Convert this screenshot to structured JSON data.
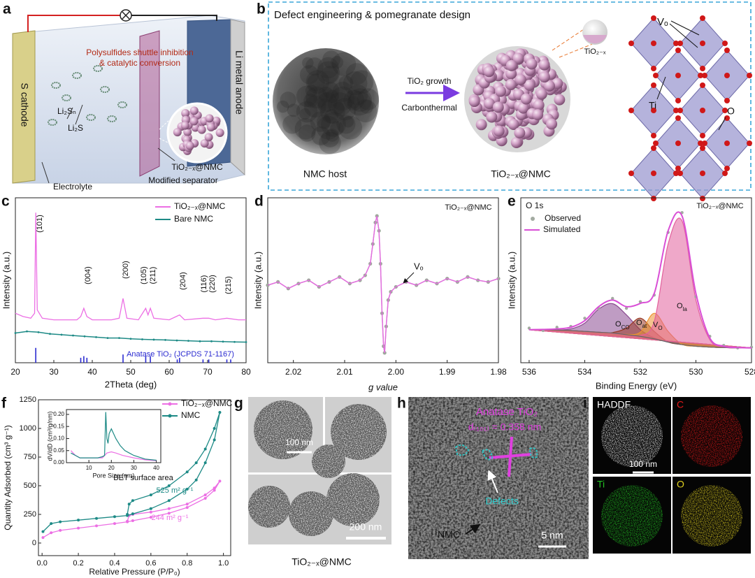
{
  "figure": {
    "a": {
      "label": "a",
      "shuttle": [
        "Polysulfides shuttle inhibition",
        "& catalytic conversion"
      ],
      "cathode": "S cathode",
      "anode": "Li metal anode",
      "li2sn": "Li₂Sₙ",
      "li2s": "Li₂S",
      "material": "TiO₂₋ₓ@NMC",
      "separator": "Modified separator",
      "electrolyte": "Electrolyte"
    },
    "b": {
      "label": "b",
      "title": "Defect engineering & pomegranate design",
      "step1": "TiO₂ growth",
      "step2": "Carbonthermal",
      "host": "NMC host",
      "product": "TiO₂₋ₓ@NMC",
      "particle": "TiO₂₋ₓ",
      "vacancy": "Vₒ",
      "ti": "Ti",
      "o": "O"
    },
    "g": {
      "label": "g",
      "scale1": "100 nm",
      "scale2": "200 nm",
      "caption": "TiO₂₋ₓ@NMC"
    },
    "h": {
      "label": "h",
      "phase": "Anatase TiO₂",
      "spacing": "d₍₁₀₁₎ = 0.358 nm",
      "defects": "Defects",
      "nmc": "NMC",
      "scale": "5 nm"
    },
    "i": {
      "label": "i",
      "panels": [
        "HADDF",
        "C",
        "Ti",
        "O"
      ],
      "scale": "100 nm"
    }
  },
  "chart_data": [
    {
      "type": "line",
      "label": "c",
      "xlabel": "2Theta (deg)",
      "ylabel": "Intensity (a.u.)",
      "xlim": [
        20,
        80
      ],
      "ylim": [
        0,
        100
      ],
      "xticks": [
        20,
        30,
        40,
        50,
        60,
        70,
        80
      ],
      "series": [
        {
          "name": "TiO₂₋ₓ@NMC",
          "color": "#ec6fe4",
          "x": [
            20,
            22,
            24,
            25,
            25.3,
            25.7,
            27,
            30,
            33,
            36,
            37,
            37.8,
            38.6,
            40,
            45,
            47,
            48,
            49,
            52,
            53.9,
            54.5,
            55.1,
            56,
            60,
            62.7,
            64,
            68.8,
            70.3,
            72,
            75,
            78,
            80
          ],
          "values": [
            30,
            28,
            27,
            30,
            91,
            32,
            27,
            26,
            26,
            26,
            28,
            33,
            28,
            26,
            26,
            27,
            39,
            27,
            26,
            33,
            29,
            33,
            27,
            26,
            29,
            26,
            27,
            27,
            26,
            27,
            26,
            26
          ]
        },
        {
          "name": "Bare NMC",
          "color": "#1d8a86",
          "markers": true,
          "x": [
            20,
            23,
            26,
            29,
            32,
            35,
            38,
            41,
            44,
            47,
            50,
            53,
            56,
            59,
            62,
            65,
            68,
            71,
            74,
            77,
            80
          ],
          "values": [
            18,
            19,
            18.5,
            17.5,
            17,
            16.5,
            16,
            15.5,
            15,
            15,
            14.5,
            14.2,
            14,
            13.8,
            13.5,
            13.3,
            13,
            13,
            12.8,
            12.6,
            12.5
          ]
        },
        {
          "name": "Anatase TiO₂ (JCPDS 71-1167)",
          "color": "#2a2ad0",
          "mode": "sticks",
          "x": [
            25.3,
            37,
            37.8,
            38.6,
            48,
            53.9,
            55.1,
            62.1,
            62.7,
            68.8,
            70.3,
            75,
            76
          ],
          "values": [
            9,
            3,
            4,
            3,
            5,
            4,
            4,
            2,
            3,
            2,
            2,
            2,
            2
          ]
        }
      ],
      "peaks": [
        "(101)",
        "(004)",
        "(200)",
        "(105)",
        "(211)",
        "(204)",
        "(116)",
        "(220)",
        "(215)"
      ]
    },
    {
      "type": "line",
      "label": "d",
      "tag": "TiO₂₋ₓ@NMC",
      "annotation": "Vₒ",
      "xlabel": "g value",
      "ylabel": "Intensity (a.u.)",
      "xlim": [
        2.025,
        1.98
      ],
      "ylim": [
        0,
        100
      ],
      "xticks": [
        2.02,
        2.01,
        {
          "value": 2,
          "label": "2.00"
        },
        1.99,
        1.98
      ],
      "series": [
        {
          "color": "#e070dc",
          "marker_color": "#9ea89c",
          "markers": true,
          "x": [
            2.025,
            2.023,
            2.021,
            2.019,
            2.017,
            2.015,
            2.013,
            2.011,
            2.009,
            2.007,
            2.006,
            2.005,
            2.0045,
            2.004,
            2.0037,
            2.0033,
            2.003,
            2.0027,
            2.0024,
            2.0022,
            2.0019,
            2.0015,
            2.001,
            2,
            1.998,
            1.996,
            1.994,
            1.992,
            1.99,
            1.988,
            1.986,
            1.984,
            1.982,
            1.98
          ],
          "values": [
            47,
            49,
            45,
            48,
            50,
            46,
            49,
            52,
            48,
            50,
            53,
            60,
            72,
            85,
            89,
            80,
            60,
            30,
            10,
            6,
            22,
            38,
            43,
            46,
            49,
            47,
            50,
            48,
            51,
            49,
            52,
            50,
            49,
            51
          ]
        }
      ]
    },
    {
      "type": "line",
      "label": "e",
      "title": "O 1s",
      "tag": "TiO₂₋ₓ@NMC",
      "xlabel": "Binding Energy (eV)",
      "ylabel": "Intensity (a.u.)",
      "xlim": [
        536.3,
        528
      ],
      "ylim": [
        0,
        100
      ],
      "xticks": [
        536,
        534,
        532,
        530,
        528
      ],
      "smooth": true,
      "x": [
        536,
        535.5,
        535,
        534.5,
        534,
        533.5,
        533,
        532.5,
        532,
        531.5,
        531,
        530.5,
        530,
        529.5,
        529,
        528.5,
        528
      ],
      "series": [
        {
          "label": {
            "main": "O",
            "sub": "CO"
          },
          "color": "#8b4b91",
          "mode": "area",
          "values": [
            20,
            20,
            19.9,
            20.5,
            24,
            32.5,
            35.8,
            29,
            20,
            15,
            12.5,
            11,
            10,
            9.5,
            9.2,
            9,
            9
          ]
        },
        {
          "label": {
            "main": "O",
            "sub": "at"
          },
          "color": "#9a3b27",
          "mode": "area",
          "values": [
            20,
            20,
            19.8,
            19.5,
            19,
            18.5,
            18.3,
            21,
            27,
            19,
            12.6,
            11,
            10,
            9.5,
            9.2,
            9,
            9
          ]
        },
        {
          "label": {
            "main": "V",
            "sub": "O"
          },
          "color": "#eb9332",
          "mode": "area",
          "values": [
            20,
            20,
            19.8,
            19.5,
            19,
            18.5,
            18,
            17.2,
            18.5,
            30,
            19,
            11.2,
            10,
            9.5,
            9.2,
            9,
            9
          ]
        },
        {
          "label": {
            "main": "O",
            "sub": "la"
          },
          "color": "#e2609c",
          "mode": "area",
          "values": [
            20,
            20,
            19.8,
            19.5,
            19,
            18.5,
            18,
            17,
            16.5,
            25,
            72,
            86,
            38,
            14,
            9.5,
            9,
            9
          ]
        },
        {
          "color": "#666666",
          "values": [
            20,
            20,
            19.8,
            19.5,
            19,
            18.5,
            18,
            17,
            16,
            14.5,
            12.5,
            11,
            10,
            9.5,
            9.2,
            9,
            9
          ]
        },
        {
          "name": "Observed",
          "color": "#a3aba1",
          "mode": "markers",
          "values": [
            21,
            19.5,
            21.5,
            22,
            27,
            33,
            39,
            33,
            37,
            41,
            79,
            91,
            40,
            16,
            10.5,
            9,
            9.5
          ]
        },
        {
          "name": "Simulated",
          "color": "#d94fd6",
          "values": [
            20,
            20.2,
            20.5,
            21.5,
            25.5,
            34,
            38,
            34,
            36,
            42,
            80,
            89,
            42,
            15,
            10,
            9.2,
            9
          ]
        }
      ]
    },
    {
      "type": "line",
      "label": "f",
      "xlabel": "Relative Pressure (P/P₀)",
      "ylabel": "Quantity Adsorbed (cm³ g⁻¹)",
      "xlim": [
        -0.02,
        1.04
      ],
      "ylim": [
        -110,
        1250
      ],
      "xticks": [
        {
          "value": 0,
          "label": "0.0"
        },
        0.2,
        0.4,
        0.6,
        0.8,
        {
          "value": 1,
          "label": "1.0"
        }
      ],
      "yticks": [
        0,
        250,
        500,
        750,
        1000,
        1250
      ],
      "series": [
        {
          "name": "TiO₂₋ₓ@NMC",
          "color": "#ec6fe4",
          "markers": true,
          "x": [
            0.005,
            0.05,
            0.1,
            0.2,
            0.3,
            0.4,
            0.47,
            0.5,
            0.6,
            0.7,
            0.8,
            0.9,
            0.95,
            0.98,
            0.95,
            0.9,
            0.8,
            0.7,
            0.6,
            0.5,
            0.48,
            0.47
          ],
          "values": [
            48,
            90,
            110,
            130,
            150,
            170,
            185,
            195,
            225,
            260,
            310,
            390,
            460,
            540,
            480,
            420,
            340,
            300,
            270,
            250,
            240,
            190
          ]
        },
        {
          "name": "NMC",
          "color": "#1d8a86",
          "markers": true,
          "x": [
            0.005,
            0.05,
            0.1,
            0.2,
            0.3,
            0.4,
            0.47,
            0.5,
            0.6,
            0.7,
            0.8,
            0.85,
            0.9,
            0.95,
            0.98,
            0.95,
            0.9,
            0.85,
            0.8,
            0.7,
            0.6,
            0.5,
            0.48,
            0.47
          ],
          "values": [
            100,
            170,
            185,
            200,
            215,
            230,
            240,
            255,
            300,
            370,
            470,
            550,
            700,
            900,
            1140,
            1000,
            820,
            700,
            620,
            500,
            420,
            370,
            340,
            250
          ]
        }
      ],
      "annotations": [
        "BET surface area",
        "525 m² g⁻¹",
        "244 m² g⁻¹"
      ]
    },
    {
      "type": "line",
      "xlabel": "Pore Size (nm)",
      "ylabel": "dV/dD (cm³/g/nm)",
      "xlim": [
        0,
        42
      ],
      "ylim": [
        0,
        0.22
      ],
      "xticks": [
        10,
        20,
        30,
        40
      ],
      "yticks": [
        {
          "value": 0,
          "label": "0.00"
        },
        0.05,
        {
          "value": 0.1,
          "label": "0.10"
        },
        0.15,
        {
          "value": 0.2,
          "label": "0.20"
        }
      ],
      "series": [
        {
          "color": "#ec6fe4",
          "x": [
            2,
            4,
            6,
            8,
            10,
            12,
            14,
            16,
            18,
            20,
            22,
            25,
            30,
            35,
            40
          ],
          "values": [
            0.05,
            0.03,
            0.02,
            0.02,
            0.02,
            0.02,
            0.02,
            0.02,
            0.04,
            0.045,
            0.04,
            0.03,
            0.02,
            0.012,
            0.008
          ]
        },
        {
          "color": "#1d8a86",
          "x": [
            2,
            4,
            6,
            8,
            10,
            12,
            14,
            16,
            17,
            17.5,
            18,
            18.5,
            19,
            20,
            21,
            22,
            24,
            26,
            28,
            30,
            35,
            40
          ],
          "values": [
            0.04,
            0.03,
            0.02,
            0.02,
            0.02,
            0.02,
            0.02,
            0.025,
            0.03,
            0.21,
            0.1,
            0.08,
            0.12,
            0.14,
            0.12,
            0.1,
            0.07,
            0.05,
            0.04,
            0.03,
            0.015,
            0.01
          ]
        }
      ]
    }
  ]
}
